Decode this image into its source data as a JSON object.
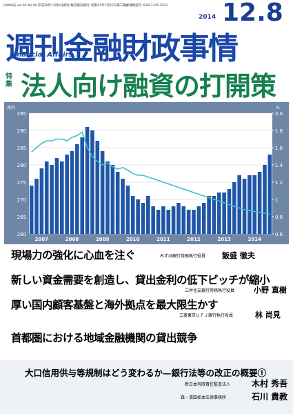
{
  "header": {
    "issue_line": "(3096号) vol.65 No.46 平成26年12月8日発行(毎月曜日発行) 昭和25年7月22日第三種郵便物認可 ISSN 1345-3033",
    "year": "2014",
    "date": "12.8",
    "title": "週刊金融財政事情",
    "subtitle": "Financial Affairs",
    "feature_tag": "特集",
    "feature_title": "法人向け融資の打開策"
  },
  "chart_data": {
    "type": "bar",
    "y_unit": "兆円",
    "y2_unit": "%",
    "categories": [
      null,
      null,
      "2007",
      null,
      null,
      null,
      null,
      null,
      "2008",
      null,
      null,
      null,
      null,
      null,
      "2009",
      null,
      null,
      null,
      null,
      null,
      "2010",
      null,
      null,
      null,
      null,
      null,
      "2011",
      null,
      null,
      null,
      null,
      null,
      "2012",
      null,
      null,
      null,
      null,
      null,
      "2013",
      null,
      null,
      null,
      null,
      null,
      "2014",
      null,
      null,
      null
    ],
    "series": [
      {
        "color": "#1f56a8",
        "values": [
          274,
          276,
          279,
          281,
          280,
          282,
          281,
          283,
          284,
          286,
          288,
          291,
          290,
          287,
          284,
          281,
          280,
          278,
          276,
          274,
          271,
          270,
          269,
          271,
          268,
          267,
          268,
          267,
          268,
          269,
          268,
          267,
          267,
          268,
          269,
          271,
          271,
          272,
          272,
          273,
          275,
          277,
          276,
          277,
          277,
          278,
          280,
          283
        ]
      },
      {
        "type": "line",
        "axis": "y2",
        "color": "#3cc0c8",
        "values": [
          1.55,
          1.6,
          1.65,
          1.68,
          1.68,
          1.7,
          1.7,
          1.68,
          1.72,
          1.74,
          1.78,
          1.6,
          1.5,
          1.44,
          1.4,
          1.42,
          1.38,
          1.35,
          1.37,
          1.34,
          1.3,
          1.28,
          1.28,
          1.26,
          1.24,
          1.22,
          1.2,
          1.18,
          1.16,
          1.14,
          1.12,
          1.1,
          1.08,
          1.06,
          1.04,
          1.02,
          1.0,
          0.98,
          0.96,
          0.94,
          0.92,
          0.9,
          0.88,
          0.87,
          0.86,
          0.85,
          0.84,
          0.83
        ]
      }
    ],
    "ylim": [
      260,
      295
    ],
    "yticks": [
      260,
      265,
      270,
      275,
      280,
      285,
      290,
      295
    ],
    "y2lim": [
      0.6,
      2.0
    ],
    "y2ticks": [
      0.6,
      0.8,
      1.0,
      1.2,
      1.4,
      1.6,
      1.8,
      {
        "value": 2.0,
        "label": "2.0"
      }
    ],
    "grid": true
  },
  "articles": [
    {
      "headline": "現場力の強化に心血を注ぐ",
      "affiliation": "みずほ銀行常務執行役員",
      "author": "飯盛 徹夫"
    },
    {
      "headline": "新しい資金需要を創造し、貸出金利の低下ピッチが縮小",
      "affiliation": "三井住友銀行常務執行役員",
      "author": "小野 直樹"
    },
    {
      "headline": "厚い国内顧客基盤と海外拠点を最大限生かす",
      "affiliation": "三菱東京ＵＦＪ銀行執行役員",
      "author": "林 尚見"
    },
    {
      "headline": "首都圏における地域金融機関の貸出競争"
    }
  ],
  "bottom": {
    "headline": "大口信用供与等規制はどう変わるか—銀行法等の改正の概要①",
    "authors": [
      {
        "affiliation": "新日本有限責任監査法人",
        "name": "木村 秀吾"
      },
      {
        "affiliation": "森・濱田松本法律事務所",
        "name": "石川 貴教"
      }
    ]
  }
}
